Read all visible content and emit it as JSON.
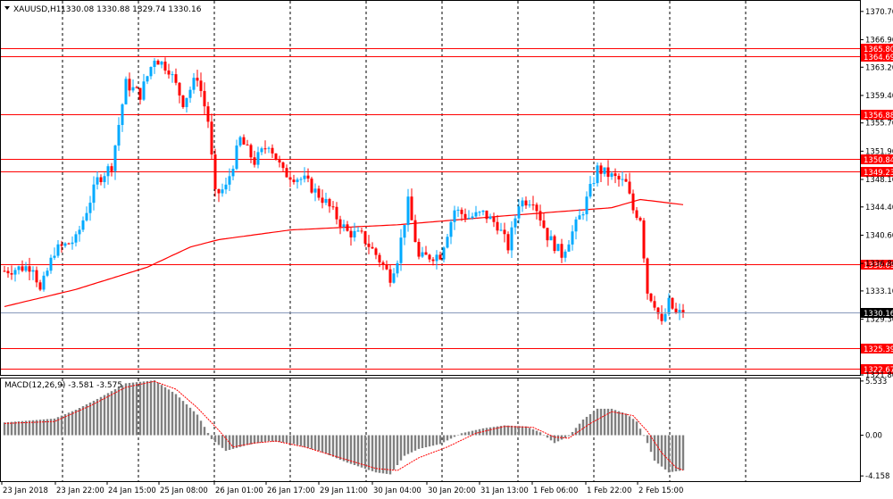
{
  "chart_data": {
    "type": "candlestick",
    "symbol_label": "XAUUSD,H1",
    "ohlc_label": "1330.08 1330.88 1329.74 1330.16",
    "current_price": 1330.16,
    "current_price_label": "1330.16",
    "price_axis": {
      "min": 1321.8,
      "max": 1372.0,
      "ticks": [
        "1370.70",
        "1366.90",
        "1363.20",
        "1359.40",
        "1355.70",
        "1351.90",
        "1348.10",
        "1344.40",
        "1340.60",
        "1336.80",
        "1333.10",
        "1329.30",
        "1321.80"
      ]
    },
    "time_axis": {
      "labels": [
        "23 Jan 2018",
        "23 Jan 22:00",
        "24 Jan 15:00",
        "25 Jan 08:00",
        "26 Jan 01:00",
        "26 Jan 17:00",
        "29 Jan 11:00",
        "30 Jan 04:00",
        "30 Jan 20:00",
        "31 Jan 13:00",
        "1 Feb 06:00",
        "1 Feb 22:00",
        "2 Feb 15:00"
      ]
    },
    "horizontal_levels": [
      {
        "value": 1365.8,
        "label": "1365.80"
      },
      {
        "value": 1364.69,
        "label": "1364.69"
      },
      {
        "value": 1356.88,
        "label": "1356.88"
      },
      {
        "value": 1350.84,
        "label": "1350.84"
      },
      {
        "value": 1349.23,
        "label": "1349.23"
      },
      {
        "value": 1336.69,
        "label": "1336.69"
      },
      {
        "value": 1325.39,
        "label": "1325.39"
      },
      {
        "value": 1322.67,
        "label": "1322.67"
      }
    ],
    "moving_average_anchors": [
      [
        0,
        1331.0
      ],
      [
        20,
        1333.3
      ],
      [
        40,
        1336.3
      ],
      [
        52,
        1339.0
      ],
      [
        60,
        1340.0
      ],
      [
        80,
        1341.3
      ],
      [
        110,
        1342.0
      ],
      [
        140,
        1343.2
      ],
      [
        170,
        1344.3
      ],
      [
        178,
        1345.4
      ],
      [
        190,
        1344.7
      ]
    ],
    "price_anchors": [
      [
        0,
        1335.8
      ],
      [
        8,
        1336.5
      ],
      [
        10,
        1333.0
      ],
      [
        14,
        1338.5
      ],
      [
        20,
        1340.0
      ],
      [
        26,
        1348.0
      ],
      [
        30,
        1350.0
      ],
      [
        34,
        1361.0
      ],
      [
        38,
        1359.5
      ],
      [
        42,
        1364.5
      ],
      [
        46,
        1363.0
      ],
      [
        50,
        1358.5
      ],
      [
        54,
        1362.0
      ],
      [
        57,
        1356.0
      ],
      [
        59,
        1346.0
      ],
      [
        62,
        1347.0
      ],
      [
        66,
        1353.5
      ],
      [
        70,
        1350.5
      ],
      [
        74,
        1353.0
      ],
      [
        78,
        1349.0
      ],
      [
        84,
        1348.0
      ],
      [
        90,
        1345.0
      ],
      [
        96,
        1341.0
      ],
      [
        100,
        1340.5
      ],
      [
        104,
        1338.0
      ],
      [
        108,
        1335.0
      ],
      [
        110,
        1337.5
      ],
      [
        113,
        1345.0
      ],
      [
        116,
        1337.5
      ],
      [
        122,
        1338.0
      ],
      [
        126,
        1344.0
      ],
      [
        130,
        1343.0
      ],
      [
        134,
        1343.5
      ],
      [
        138,
        1342.0
      ],
      [
        141,
        1339.0
      ],
      [
        144,
        1345.0
      ],
      [
        148,
        1345.5
      ],
      [
        152,
        1340.5
      ],
      [
        156,
        1338.0
      ],
      [
        158,
        1340.0
      ],
      [
        162,
        1344.0
      ],
      [
        166,
        1349.5
      ],
      [
        170,
        1348.5
      ],
      [
        174,
        1347.5
      ],
      [
        176,
        1344.0
      ],
      [
        178,
        1343.0
      ],
      [
        180,
        1333.0
      ],
      [
        182,
        1331.5
      ],
      [
        184,
        1328.5
      ],
      [
        186,
        1331.5
      ],
      [
        188,
        1330.0
      ],
      [
        190,
        1330.16
      ]
    ],
    "macd": {
      "label": "MACD(12,26,9) -3.581 -3.575",
      "axis": {
        "min": -4.6,
        "max": 5.7,
        "ticks": [
          "5.533",
          "0.00",
          "-4.158"
        ]
      },
      "histogram_anchors": [
        [
          0,
          1.3
        ],
        [
          14,
          1.7
        ],
        [
          20,
          2.6
        ],
        [
          26,
          3.7
        ],
        [
          34,
          5.3
        ],
        [
          42,
          5.6
        ],
        [
          48,
          4.2
        ],
        [
          54,
          2.1
        ],
        [
          58,
          -0.4
        ],
        [
          62,
          -1.6
        ],
        [
          68,
          -1.0
        ],
        [
          74,
          -0.6
        ],
        [
          80,
          -0.8
        ],
        [
          88,
          -1.6
        ],
        [
          96,
          -2.8
        ],
        [
          104,
          -3.8
        ],
        [
          108,
          -4.0
        ],
        [
          112,
          -2.1
        ],
        [
          116,
          -1.4
        ],
        [
          122,
          -0.9
        ],
        [
          128,
          0.2
        ],
        [
          134,
          0.7
        ],
        [
          140,
          1.0
        ],
        [
          146,
          0.9
        ],
        [
          150,
          0.3
        ],
        [
          154,
          -0.8
        ],
        [
          158,
          -0.1
        ],
        [
          162,
          1.6
        ],
        [
          166,
          2.7
        ],
        [
          170,
          2.7
        ],
        [
          174,
          2.2
        ],
        [
          177,
          1.4
        ],
        [
          180,
          -0.8
        ],
        [
          182,
          -2.6
        ],
        [
          186,
          -3.8
        ],
        [
          190,
          -3.58
        ]
      ],
      "signal_anchors": [
        [
          0,
          1.2
        ],
        [
          14,
          1.4
        ],
        [
          24,
          3.0
        ],
        [
          34,
          4.9
        ],
        [
          42,
          5.5
        ],
        [
          48,
          4.7
        ],
        [
          54,
          2.8
        ],
        [
          60,
          0.5
        ],
        [
          64,
          -1.2
        ],
        [
          70,
          -0.8
        ],
        [
          76,
          -0.6
        ],
        [
          84,
          -1.2
        ],
        [
          94,
          -2.3
        ],
        [
          104,
          -3.4
        ],
        [
          110,
          -3.6
        ],
        [
          116,
          -2.3
        ],
        [
          124,
          -1.2
        ],
        [
          132,
          0.2
        ],
        [
          140,
          0.9
        ],
        [
          148,
          0.8
        ],
        [
          154,
          -0.2
        ],
        [
          158,
          -0.3
        ],
        [
          164,
          1.2
        ],
        [
          170,
          2.4
        ],
        [
          176,
          2.0
        ],
        [
          180,
          0.4
        ],
        [
          184,
          -1.8
        ],
        [
          188,
          -3.3
        ],
        [
          190,
          -3.575
        ]
      ]
    }
  }
}
